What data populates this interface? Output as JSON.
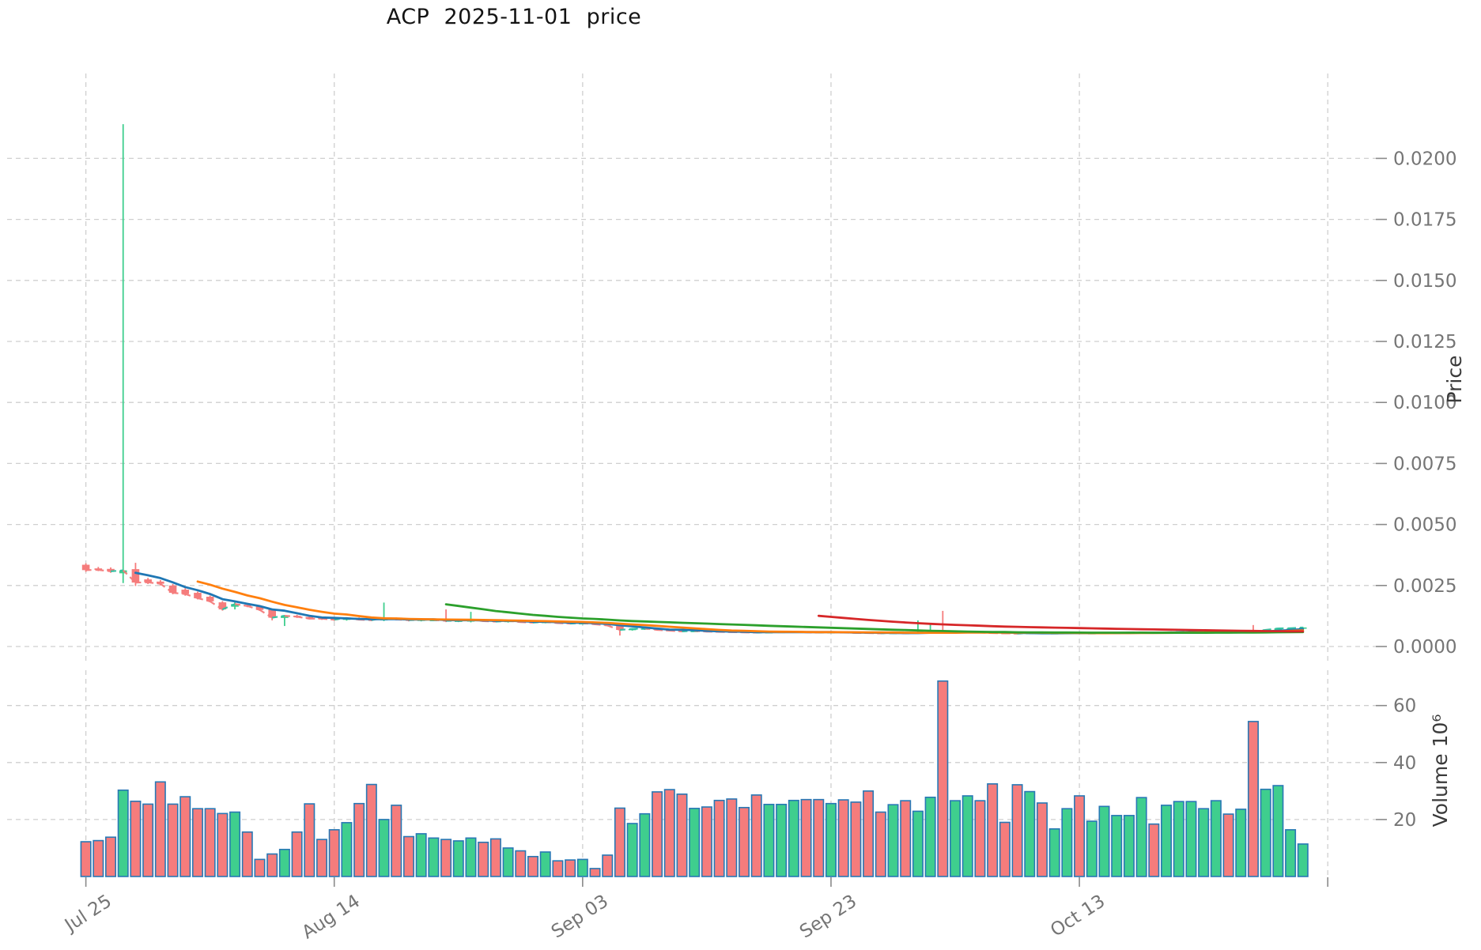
{
  "title": "ACP  2025-11-01  price",
  "chart_data": {
    "type": "candlestick",
    "title": "ACP  2025-11-01  price",
    "x_axis": {
      "tick_labels": [
        "Jul 25",
        "Aug 14",
        "Sep 03",
        "Sep 23",
        "Oct 13"
      ],
      "tick_days": [
        0,
        20,
        40,
        60,
        80
      ],
      "unlabeled_gridline_day": 100
    },
    "price_axis": {
      "label": "Price",
      "ticks": [
        0.0,
        0.0025,
        0.005,
        0.0075,
        0.01,
        0.0125,
        0.015,
        0.0175,
        0.02
      ],
      "range": [
        -0.0007,
        0.0235
      ],
      "grid": true
    },
    "volume_axis": {
      "label": "Volume",
      "unit": "10⁶",
      "ticks": [
        20,
        40,
        60
      ],
      "range": [
        0,
        72
      ],
      "grid": true
    },
    "legend": "none",
    "moving_averages": [
      {
        "window": 5,
        "color": "#1f77b4"
      },
      {
        "window": 10,
        "color": "#ff7f0e"
      },
      {
        "window": 30,
        "color": "#2ca02c"
      },
      {
        "window": 60,
        "color": "#d62728"
      }
    ],
    "colors": {
      "up": "#3fce8e",
      "down": "#f57c7c",
      "bar_edge": "#2878b5",
      "close_dash_up": "#2fc2a2",
      "close_dash_down": "#f57c7c",
      "grid": "#cfcfcf",
      "tick_mark": "#8a8a8a",
      "tick_label": "#757575",
      "axis_label": "#3a3a3a",
      "title": "#141414",
      "background": "#ffffff"
    },
    "price_unit": 1e-05,
    "candle_fields": [
      "date",
      "open",
      "high",
      "low",
      "close",
      "volume_millions",
      "up"
    ],
    "candles": [
      [
        "Jul 25",
        335,
        341,
        306,
        313,
        12.2,
        0
      ],
      [
        "Jul 26",
        320,
        326,
        309,
        314,
        12.6,
        0
      ],
      [
        "Jul 27",
        318,
        324,
        302,
        308,
        13.8,
        0
      ],
      [
        "Jul 28",
        300,
        2140,
        260,
        312,
        30.3,
        1
      ],
      [
        "Jul 29",
        317,
        343,
        248,
        262,
        26.4,
        0
      ],
      [
        "Jul 30",
        275,
        281,
        256,
        263,
        25.4,
        0
      ],
      [
        "Jul 31",
        266,
        272,
        250,
        257,
        33.2,
        0
      ],
      [
        "Aug 01",
        250,
        256,
        214,
        220,
        25.4,
        0
      ],
      [
        "Aug 02",
        233,
        239,
        208,
        215,
        28.0,
        0
      ],
      [
        "Aug 03",
        220,
        225,
        193,
        198,
        23.8,
        0
      ],
      [
        "Aug 04",
        204,
        209,
        181,
        185,
        23.8,
        0
      ],
      [
        "Aug 05",
        181,
        186,
        147,
        152,
        22.1,
        0
      ],
      [
        "Aug 06",
        163,
        184,
        152,
        174,
        22.6,
        1
      ],
      [
        "Aug 07",
        170,
        175,
        161,
        166,
        15.6,
        0
      ],
      [
        "Aug 08",
        166,
        169,
        146,
        150,
        6.0,
        0
      ],
      [
        "Aug 09",
        152,
        156,
        107,
        118,
        7.9,
        0
      ],
      [
        "Aug 10",
        117,
        129,
        84,
        126,
        9.5,
        1
      ],
      [
        "Aug 11",
        126,
        130,
        117,
        122,
        15.6,
        0
      ],
      [
        "Aug 12",
        121,
        124,
        111,
        114,
        25.5,
        0
      ],
      [
        "Aug 13",
        117,
        121,
        109,
        114,
        13.0,
        0
      ],
      [
        "Aug 14",
        113,
        117,
        105,
        110,
        16.4,
        0
      ],
      [
        "Aug 15",
        109,
        119,
        106,
        117,
        18.9,
        1
      ],
      [
        "Aug 16",
        116,
        119,
        107,
        110,
        25.6,
        0
      ],
      [
        "Aug 17",
        112,
        115,
        104,
        108,
        32.3,
        0
      ],
      [
        "Aug 18",
        107,
        180,
        104,
        117,
        20.0,
        1
      ],
      [
        "Aug 19",
        116,
        119,
        107,
        111,
        25.0,
        0
      ],
      [
        "Aug 20",
        112,
        115,
        103,
        108,
        14.0,
        0
      ],
      [
        "Aug 21",
        106,
        112,
        103,
        110,
        15.0,
        1
      ],
      [
        "Aug 22",
        107,
        111,
        104,
        109,
        13.5,
        1
      ],
      [
        "Aug 23",
        110,
        152,
        100,
        105,
        13.0,
        0
      ],
      [
        "Aug 24",
        103,
        108,
        100,
        106,
        12.5,
        1
      ],
      [
        "Aug 25",
        102,
        142,
        99,
        110,
        13.5,
        1
      ],
      [
        "Aug 26",
        108,
        111,
        101,
        104,
        12.0,
        0
      ],
      [
        "Aug 27",
        106,
        109,
        99,
        102,
        13.2,
        0
      ],
      [
        "Aug 28",
        101,
        107,
        98,
        105,
        10.0,
        1
      ],
      [
        "Aug 29",
        104,
        107,
        97,
        100,
        9.0,
        0
      ],
      [
        "Aug 30",
        101,
        104,
        95,
        98,
        7.0,
        0
      ],
      [
        "Aug 31",
        98,
        104,
        95,
        101,
        8.6,
        1
      ],
      [
        "Sep 01",
        100,
        103,
        93,
        96,
        5.5,
        0
      ],
      [
        "Sep 02",
        97,
        100,
        91,
        94,
        5.8,
        0
      ],
      [
        "Sep 03",
        93,
        99,
        90,
        96,
        6.0,
        1
      ],
      [
        "Sep 04",
        95,
        98,
        88,
        91,
        2.8,
        0
      ],
      [
        "Sep 05",
        91,
        94,
        83,
        86,
        7.5,
        0
      ],
      [
        "Sep 06",
        88,
        90,
        45,
        68,
        24.0,
        0
      ],
      [
        "Sep 07",
        68,
        75,
        65,
        72,
        18.6,
        1
      ],
      [
        "Sep 08",
        71,
        77,
        68,
        74,
        22.0,
        1
      ],
      [
        "Sep 09",
        73,
        75,
        65,
        68,
        29.7,
        0
      ],
      [
        "Sep 10",
        68,
        70,
        62,
        65,
        30.5,
        0
      ],
      [
        "Sep 11",
        65,
        67,
        59,
        62,
        28.9,
        0
      ],
      [
        "Sep 12",
        62,
        66,
        60,
        64,
        23.9,
        1
      ],
      [
        "Sep 13",
        64,
        66,
        58,
        61,
        24.4,
        0
      ],
      [
        "Sep 14",
        62,
        64,
        57,
        60,
        26.7,
        0
      ],
      [
        "Sep 15",
        61,
        63,
        56,
        59,
        27.2,
        0
      ],
      [
        "Sep 16",
        60,
        62,
        55,
        58,
        24.2,
        0
      ],
      [
        "Sep 17",
        59,
        61,
        54,
        57,
        28.6,
        0
      ],
      [
        "Sep 18",
        57,
        61,
        55,
        59,
        25.3,
        1
      ],
      [
        "Sep 19",
        58,
        62,
        56,
        60,
        25.3,
        1
      ],
      [
        "Sep 20",
        59,
        63,
        57,
        61,
        26.7,
        1
      ],
      [
        "Sep 21",
        61,
        63,
        55,
        58,
        27.0,
        0
      ],
      [
        "Sep 22",
        59,
        61,
        54,
        57,
        27.0,
        0
      ],
      [
        "Sep 23",
        57,
        61,
        55,
        59,
        25.6,
        1
      ],
      [
        "Sep 24",
        59,
        61,
        54,
        57,
        26.9,
        0
      ],
      [
        "Sep 25",
        58,
        60,
        53,
        56,
        26.1,
        0
      ],
      [
        "Sep 26",
        57,
        59,
        52,
        55,
        30.0,
        0
      ],
      [
        "Sep 27",
        56,
        58,
        51,
        54,
        22.6,
        0
      ],
      [
        "Sep 28",
        54,
        58,
        52,
        56,
        25.2,
        1
      ],
      [
        "Sep 29",
        56,
        58,
        51,
        54,
        26.6,
        0
      ],
      [
        "Sep 30",
        54,
        107,
        52,
        57,
        22.9,
        1
      ],
      [
        "Oct 01",
        57,
        96,
        54,
        60,
        27.8,
        1
      ],
      [
        "Oct 02",
        61,
        146,
        55,
        57,
        68.6,
        0
      ],
      [
        "Oct 03",
        57,
        61,
        54,
        59,
        26.6,
        1
      ],
      [
        "Oct 04",
        58,
        63,
        56,
        61,
        28.3,
        1
      ],
      [
        "Oct 05",
        60,
        62,
        54,
        57,
        26.6,
        0
      ],
      [
        "Oct 06",
        57,
        59,
        52,
        55,
        32.5,
        0
      ],
      [
        "Oct 07",
        56,
        58,
        51,
        54,
        19.0,
        0
      ],
      [
        "Oct 08",
        55,
        57,
        50,
        53,
        32.2,
        0
      ],
      [
        "Oct 09",
        53,
        58,
        51,
        56,
        29.8,
        1
      ],
      [
        "Oct 10",
        56,
        58,
        51,
        54,
        25.8,
        0
      ],
      [
        "Oct 11",
        54,
        57,
        52,
        55,
        16.7,
        1
      ],
      [
        "Oct 12",
        54,
        58,
        52,
        56,
        23.8,
        1
      ],
      [
        "Oct 13",
        56,
        58,
        51,
        54,
        28.3,
        0
      ],
      [
        "Oct 14",
        54,
        57,
        52,
        55,
        19.4,
        1
      ],
      [
        "Oct 15",
        54,
        58,
        52,
        56,
        24.6,
        1
      ],
      [
        "Oct 16",
        55,
        58,
        53,
        56,
        21.4,
        1
      ],
      [
        "Oct 17",
        55,
        59,
        53,
        57,
        21.4,
        1
      ],
      [
        "Oct 18",
        56,
        60,
        54,
        58,
        27.7,
        1
      ],
      [
        "Oct 19",
        58,
        60,
        53,
        56,
        18.4,
        0
      ],
      [
        "Oct 20",
        56,
        60,
        54,
        58,
        25.0,
        1
      ],
      [
        "Oct 21",
        57,
        61,
        55,
        59,
        26.3,
        1
      ],
      [
        "Oct 22",
        58,
        62,
        56,
        60,
        26.3,
        1
      ],
      [
        "Oct 23",
        59,
        62,
        56,
        60,
        23.8,
        1
      ],
      [
        "Oct 24",
        59,
        63,
        57,
        61,
        26.6,
        1
      ],
      [
        "Oct 25",
        61,
        63,
        55,
        58,
        21.9,
        0
      ],
      [
        "Oct 26",
        58,
        63,
        56,
        61,
        23.6,
        1
      ],
      [
        "Oct 27",
        66,
        88,
        58,
        61,
        54.4,
        0
      ],
      [
        "Oct 28",
        61,
        70,
        59,
        68,
        30.6,
        1
      ],
      [
        "Oct 29",
        68,
        76,
        65,
        74,
        31.9,
        1
      ],
      [
        "Oct 30",
        73,
        77,
        70,
        75,
        16.4,
        1
      ],
      [
        "Oct 31",
        74,
        80,
        71,
        78,
        11.4,
        1
      ]
    ]
  }
}
